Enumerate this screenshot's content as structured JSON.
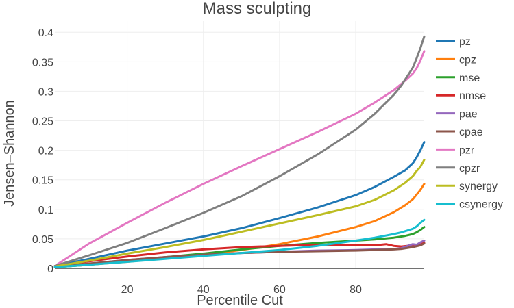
{
  "chart_data": {
    "type": "line",
    "title": "Mass sculpting",
    "xlabel": "Percentile Cut",
    "ylabel": "Jensen–Shannon",
    "xlim": [
      1,
      98
    ],
    "ylim": [
      0,
      0.42
    ],
    "xticks": [
      20,
      40,
      60,
      80
    ],
    "yticks": [
      0,
      0.05,
      0.1,
      0.15,
      0.2,
      0.25,
      0.3,
      0.35,
      0.4
    ],
    "ytick_labels": [
      "0",
      "0.05",
      "0.1",
      "0.15",
      "0.2",
      "0.25",
      "0.3",
      "0.35",
      "0.4"
    ],
    "grid": true,
    "legend_position": "right",
    "series": [
      {
        "name": "pz",
        "color": "#1f77b4",
        "x": [
          1,
          10,
          20,
          30,
          40,
          50,
          60,
          70,
          80,
          85,
          90,
          93,
          95,
          96,
          97,
          98
        ],
        "y": [
          0.004,
          0.016,
          0.03,
          0.042,
          0.054,
          0.068,
          0.085,
          0.103,
          0.124,
          0.138,
          0.155,
          0.166,
          0.178,
          0.188,
          0.2,
          0.214
        ]
      },
      {
        "name": "cpz",
        "color": "#ff7f0e",
        "x": [
          1,
          10,
          20,
          30,
          40,
          50,
          60,
          70,
          80,
          85,
          90,
          93,
          95,
          96,
          97,
          98
        ],
        "y": [
          0.002,
          0.006,
          0.011,
          0.017,
          0.023,
          0.031,
          0.041,
          0.054,
          0.07,
          0.08,
          0.095,
          0.107,
          0.117,
          0.125,
          0.133,
          0.143
        ]
      },
      {
        "name": "mse",
        "color": "#2ca02c",
        "x": [
          1,
          10,
          20,
          30,
          40,
          50,
          60,
          70,
          80,
          85,
          90,
          92,
          93,
          95,
          96,
          97,
          98
        ],
        "y": [
          0.002,
          0.006,
          0.012,
          0.019,
          0.025,
          0.032,
          0.038,
          0.043,
          0.047,
          0.049,
          0.052,
          0.054,
          0.055,
          0.058,
          0.061,
          0.065,
          0.07
        ]
      },
      {
        "name": "nmse",
        "color": "#d62728",
        "x": [
          1,
          10,
          20,
          30,
          40,
          50,
          60,
          70,
          80,
          85,
          88,
          90,
          92,
          95,
          97,
          98
        ],
        "y": [
          0.003,
          0.012,
          0.02,
          0.027,
          0.032,
          0.036,
          0.038,
          0.04,
          0.04,
          0.039,
          0.041,
          0.038,
          0.037,
          0.039,
          0.041,
          0.043
        ]
      },
      {
        "name": "pae",
        "color": "#9467bd",
        "x": [
          1,
          10,
          20,
          30,
          40,
          50,
          60,
          70,
          80,
          85,
          90,
          92,
          94,
          95,
          96,
          97,
          98
        ],
        "y": [
          0.002,
          0.008,
          0.014,
          0.019,
          0.023,
          0.026,
          0.028,
          0.03,
          0.031,
          0.032,
          0.033,
          0.034,
          0.039,
          0.041,
          0.04,
          0.044,
          0.047
        ]
      },
      {
        "name": "cpae",
        "color": "#8c564b",
        "x": [
          1,
          10,
          20,
          30,
          40,
          50,
          60,
          70,
          80,
          85,
          90,
          92,
          95,
          97,
          98
        ],
        "y": [
          0.002,
          0.008,
          0.014,
          0.019,
          0.023,
          0.026,
          0.028,
          0.029,
          0.03,
          0.031,
          0.032,
          0.033,
          0.036,
          0.039,
          0.042
        ]
      },
      {
        "name": "pzr",
        "color": "#e377c2",
        "x": [
          1,
          10,
          20,
          30,
          40,
          50,
          60,
          70,
          80,
          85,
          90,
          93,
          95,
          96,
          97,
          98
        ],
        "y": [
          0.004,
          0.042,
          0.077,
          0.111,
          0.143,
          0.173,
          0.202,
          0.231,
          0.262,
          0.281,
          0.302,
          0.318,
          0.33,
          0.339,
          0.352,
          0.368
        ]
      },
      {
        "name": "cpzr",
        "color": "#7f7f7f",
        "x": [
          1,
          10,
          20,
          30,
          40,
          50,
          60,
          70,
          80,
          85,
          90,
          92,
          93,
          95,
          96,
          97,
          98
        ],
        "y": [
          0.004,
          0.022,
          0.043,
          0.068,
          0.094,
          0.122,
          0.156,
          0.193,
          0.235,
          0.262,
          0.294,
          0.31,
          0.32,
          0.34,
          0.356,
          0.373,
          0.393
        ]
      },
      {
        "name": "synergy",
        "color": "#bcbd22",
        "x": [
          1,
          10,
          20,
          30,
          40,
          50,
          60,
          70,
          80,
          85,
          90,
          93,
          95,
          96,
          97,
          98
        ],
        "y": [
          0.003,
          0.013,
          0.025,
          0.036,
          0.048,
          0.062,
          0.076,
          0.09,
          0.105,
          0.116,
          0.132,
          0.145,
          0.156,
          0.165,
          0.172,
          0.184
        ]
      },
      {
        "name": "csynergy",
        "color": "#17becf",
        "x": [
          1,
          10,
          20,
          30,
          40,
          50,
          60,
          70,
          80,
          85,
          90,
          92,
          95,
          96,
          97,
          98
        ],
        "y": [
          0.002,
          0.006,
          0.011,
          0.016,
          0.021,
          0.026,
          0.031,
          0.038,
          0.047,
          0.052,
          0.058,
          0.061,
          0.067,
          0.071,
          0.077,
          0.082
        ]
      }
    ]
  }
}
